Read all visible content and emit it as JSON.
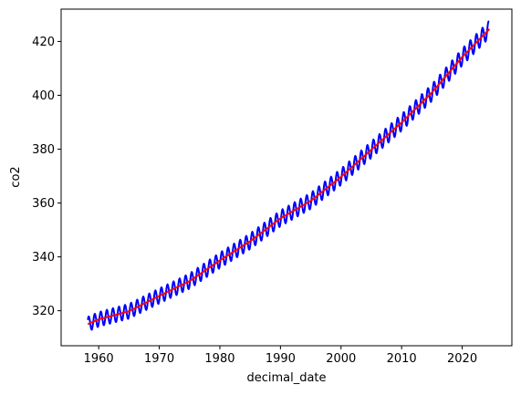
{
  "chart_data": {
    "type": "line",
    "title": "",
    "xlabel": "decimal_date",
    "ylabel": "co2",
    "xlim": [
      1953.8,
      2028.2
    ],
    "ylim": [
      307,
      432
    ],
    "grid": false,
    "x_ticks": [
      1960,
      1970,
      1980,
      1990,
      2000,
      2010,
      2020
    ],
    "y_ticks": [
      320,
      340,
      360,
      380,
      400,
      420
    ],
    "x_tick_labels": [
      "1960",
      "1970",
      "1980",
      "1990",
      "2000",
      "2010",
      "2020"
    ],
    "y_tick_labels": [
      "320",
      "340",
      "360",
      "380",
      "400",
      "420"
    ],
    "colors": {
      "monthly": "#0000ff",
      "trend": "#ff0000",
      "axes": "#000000",
      "background": "#ffffff"
    },
    "series": [
      {
        "kind": "monthly",
        "x_start": 1958.2,
        "x_end": 2024.5,
        "step_years": 0.0833,
        "seasonal_amplitude": 3.2,
        "color": "#0000ff",
        "linewidth": 2
      },
      {
        "kind": "trend",
        "x": [
          1958.2,
          1960,
          1965,
          1970,
          1975,
          1980,
          1985,
          1990,
          1995,
          2000,
          2005,
          2010,
          2015,
          2020,
          2024.5
        ],
        "y": [
          315.0,
          316.8,
          319.8,
          325.5,
          331.0,
          338.7,
          345.8,
          354.3,
          360.8,
          369.7,
          379.8,
          389.9,
          401.0,
          414.2,
          424.6
        ],
        "color": "#ff0000",
        "linewidth": 2
      }
    ]
  }
}
